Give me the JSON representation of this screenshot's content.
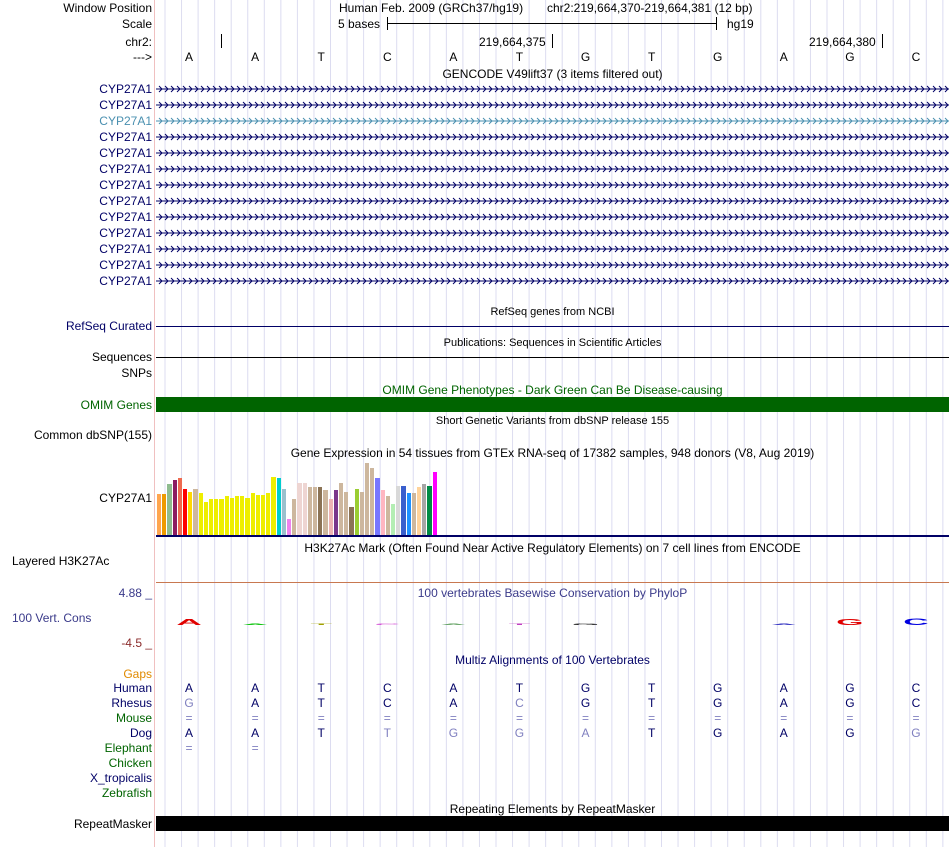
{
  "header": {
    "window_position_label": "Window Position",
    "scale_label": "Scale",
    "chrom_label": "chr2:",
    "strand_label": "--->",
    "assembly": "Human Feb. 2009 (GRCh37/hg19)",
    "position": "chr2:219,664,370-219,664,381 (12 bp)",
    "scale_text": "5 bases",
    "db": "hg19",
    "coord_1": "219,664,375",
    "coord_2": "219,664,380"
  },
  "bases": [
    "A",
    "A",
    "T",
    "C",
    "A",
    "T",
    "G",
    "T",
    "G",
    "A",
    "G",
    "C"
  ],
  "gencode": {
    "title": "GENCODE V49lift37 (3 items filtered out)",
    "gene_name": "CYP27A1",
    "row_count": 13,
    "highlight_row": 2,
    "highlight_color": "#4a90b0"
  },
  "refseq": {
    "label": "RefSeq Curated",
    "title": "RefSeq genes from NCBI"
  },
  "sequences": {
    "label": "Sequences",
    "title": "Publications: Sequences in Scientific Articles"
  },
  "snps": {
    "label": "SNPs"
  },
  "omim": {
    "label": "OMIM Genes",
    "title": "OMIM Gene Phenotypes - Dark Green Can Be Disease-causing",
    "color": "#006400"
  },
  "dbsnp": {
    "label": "Common dbSNP(155)",
    "title": "Short Genetic Variants from dbSNP release 155"
  },
  "gtex": {
    "label": "CYP27A1",
    "title": "Gene Expression in 54 tissues from GTEx RNA-seq of 17382 samples, 948 donors (V8, Aug 2019)",
    "values": [
      0.55,
      0.55,
      0.68,
      0.73,
      0.76,
      0.62,
      0.58,
      0.62,
      0.56,
      0.44,
      0.48,
      0.48,
      0.48,
      0.52,
      0.5,
      0.52,
      0.52,
      0.5,
      0.56,
      0.54,
      0.54,
      0.56,
      0.78,
      0.76,
      0.62,
      0.22,
      0.48,
      0.7,
      0.7,
      0.64,
      0.64,
      0.64,
      0.6,
      0.48,
      0.6,
      0.7,
      0.58,
      0.38,
      0.62,
      0.58,
      0.96,
      0.9,
      0.76,
      0.6,
      0.52,
      0.42,
      0.66,
      0.66,
      0.56,
      0.56,
      0.64,
      0.68,
      0.66,
      0.84
    ],
    "colors": [
      "#FFA54F",
      "#EE9A00",
      "#8FBC8F",
      "#8B1C62",
      "#EE6A50",
      "#FF0000",
      "#FFD700",
      "#CDB79E",
      "#EEEE00",
      "#EEEE00",
      "#EEEE00",
      "#EEEE00",
      "#EEEE00",
      "#EEEE00",
      "#EEEE00",
      "#EEEE00",
      "#EEEE00",
      "#EEEE00",
      "#EEEE00",
      "#EEEE00",
      "#EEEE00",
      "#EEEE00",
      "#EEEE00",
      "#00CDCD",
      "#9AC0CD",
      "#EE82EE",
      "#CDB79E",
      "#EED5D2",
      "#EED5D2",
      "#CDB79E",
      "#CDB79E",
      "#8B7355",
      "#CDB79E",
      "#EEB4B4",
      "#7A378B",
      "#CDB79E",
      "#CDB79E",
      "#8B7355",
      "#9ACD32",
      "#CDB79E",
      "#CDB79E",
      "#CDB79E",
      "#7777FF",
      "#FFB6C1",
      "#CDB79E",
      "#B4EEB4",
      "#D9D9D9",
      "#3A5FCD",
      "#1E90FF",
      "#CDB79E",
      "#FFD39B",
      "#A6A6A6",
      "#008B45",
      "#FF00FF"
    ]
  },
  "h3k27ac": {
    "label": "Layered H3K27Ac",
    "title": "H3K27Ac Mark (Often Found Near Active Regulatory Elements) on 7 cell lines from ENCODE"
  },
  "phylop": {
    "label": "100 Vert. Cons",
    "title": "100 vertebrates Basewise Conservation by PhyloP",
    "max": "4.88 _",
    "min": "-4.5 _",
    "logo_heights": [
      0.9,
      0.18,
      0.14,
      0.12,
      0.16,
      0.16,
      0.12,
      0,
      0,
      0.08,
      0.9,
      1.0
    ]
  },
  "multiz": {
    "title": "Multiz Alignments of 100 Vertebrates",
    "gaps_label": "Gaps",
    "species": [
      {
        "name": "Human",
        "color": "#000066",
        "bases": [
          "A",
          "A",
          "T",
          "C",
          "A",
          "T",
          "G",
          "T",
          "G",
          "A",
          "G",
          "C"
        ],
        "dim": []
      },
      {
        "name": "Rhesus",
        "color": "#000066",
        "bases": [
          "G",
          "A",
          "T",
          "C",
          "A",
          "C",
          "G",
          "T",
          "G",
          "A",
          "G",
          "C"
        ],
        "dim": [
          0,
          5
        ]
      },
      {
        "name": "Mouse",
        "color": "#006400",
        "bases": [
          "=",
          "=",
          "=",
          "=",
          "=",
          "=",
          "=",
          "=",
          "=",
          "=",
          "=",
          "="
        ],
        "dim": []
      },
      {
        "name": "Dog",
        "color": "#000066",
        "bases": [
          "A",
          "A",
          "T",
          "T",
          "G",
          "G",
          "A",
          "T",
          "G",
          "A",
          "G",
          "G"
        ],
        "dim": [
          3,
          4,
          5,
          6,
          11
        ]
      },
      {
        "name": "Elephant",
        "color": "#006400",
        "bases": [
          "=",
          "=",
          "",
          "",
          "",
          "",
          "",
          "",
          "",
          "",
          "",
          ""
        ],
        "dim": []
      },
      {
        "name": "Chicken",
        "color": "#006400",
        "bases": [],
        "dim": []
      },
      {
        "name": "X_tropicalis",
        "color": "#000066",
        "bases": [],
        "dim": []
      },
      {
        "name": "Zebrafish",
        "color": "#006400",
        "bases": [],
        "dim": []
      }
    ]
  },
  "repeatmasker": {
    "label": "RepeatMasker",
    "title": "Repeating Elements by RepeatMasker"
  }
}
